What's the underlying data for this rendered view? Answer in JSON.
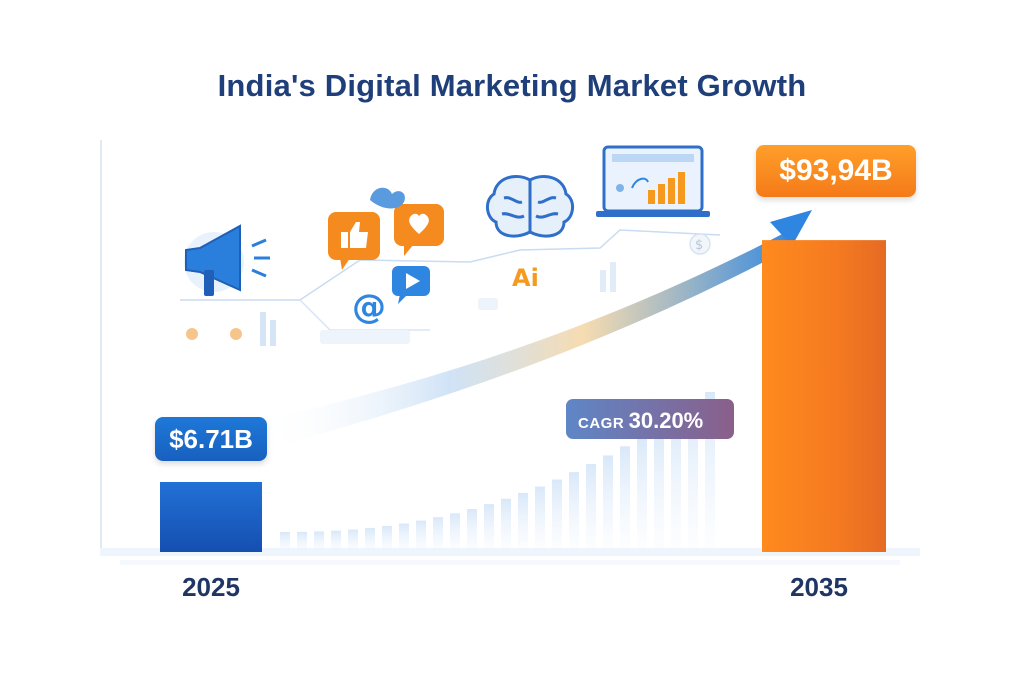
{
  "title": "India's Digital Marketing Market Growth",
  "chart_data": {
    "type": "bar",
    "title": "India's Digital Marketing Market Growth",
    "categories": [
      "2025",
      "2035"
    ],
    "values": [
      6.71,
      93.94
    ],
    "value_labels": [
      "$6.71B",
      "$93,94B"
    ],
    "unit": "B",
    "ylim": [
      0,
      100
    ],
    "grid": false,
    "annotation": {
      "label": "CAGR",
      "value": "30.20%"
    }
  },
  "colors": {
    "bar_2025": "#1a5fc4",
    "bar_2035": "#f37e22",
    "title": "#1f3f7a",
    "accent_blue": "#2f86e0",
    "accent_orange": "#f5931f"
  },
  "icons": [
    "megaphone-icon",
    "thumbs-up-icon",
    "heart-icon",
    "play-icon",
    "at-icon",
    "brain-icon",
    "ai-icon",
    "laptop-chart-icon",
    "dollar-icon",
    "arrow-icon"
  ]
}
